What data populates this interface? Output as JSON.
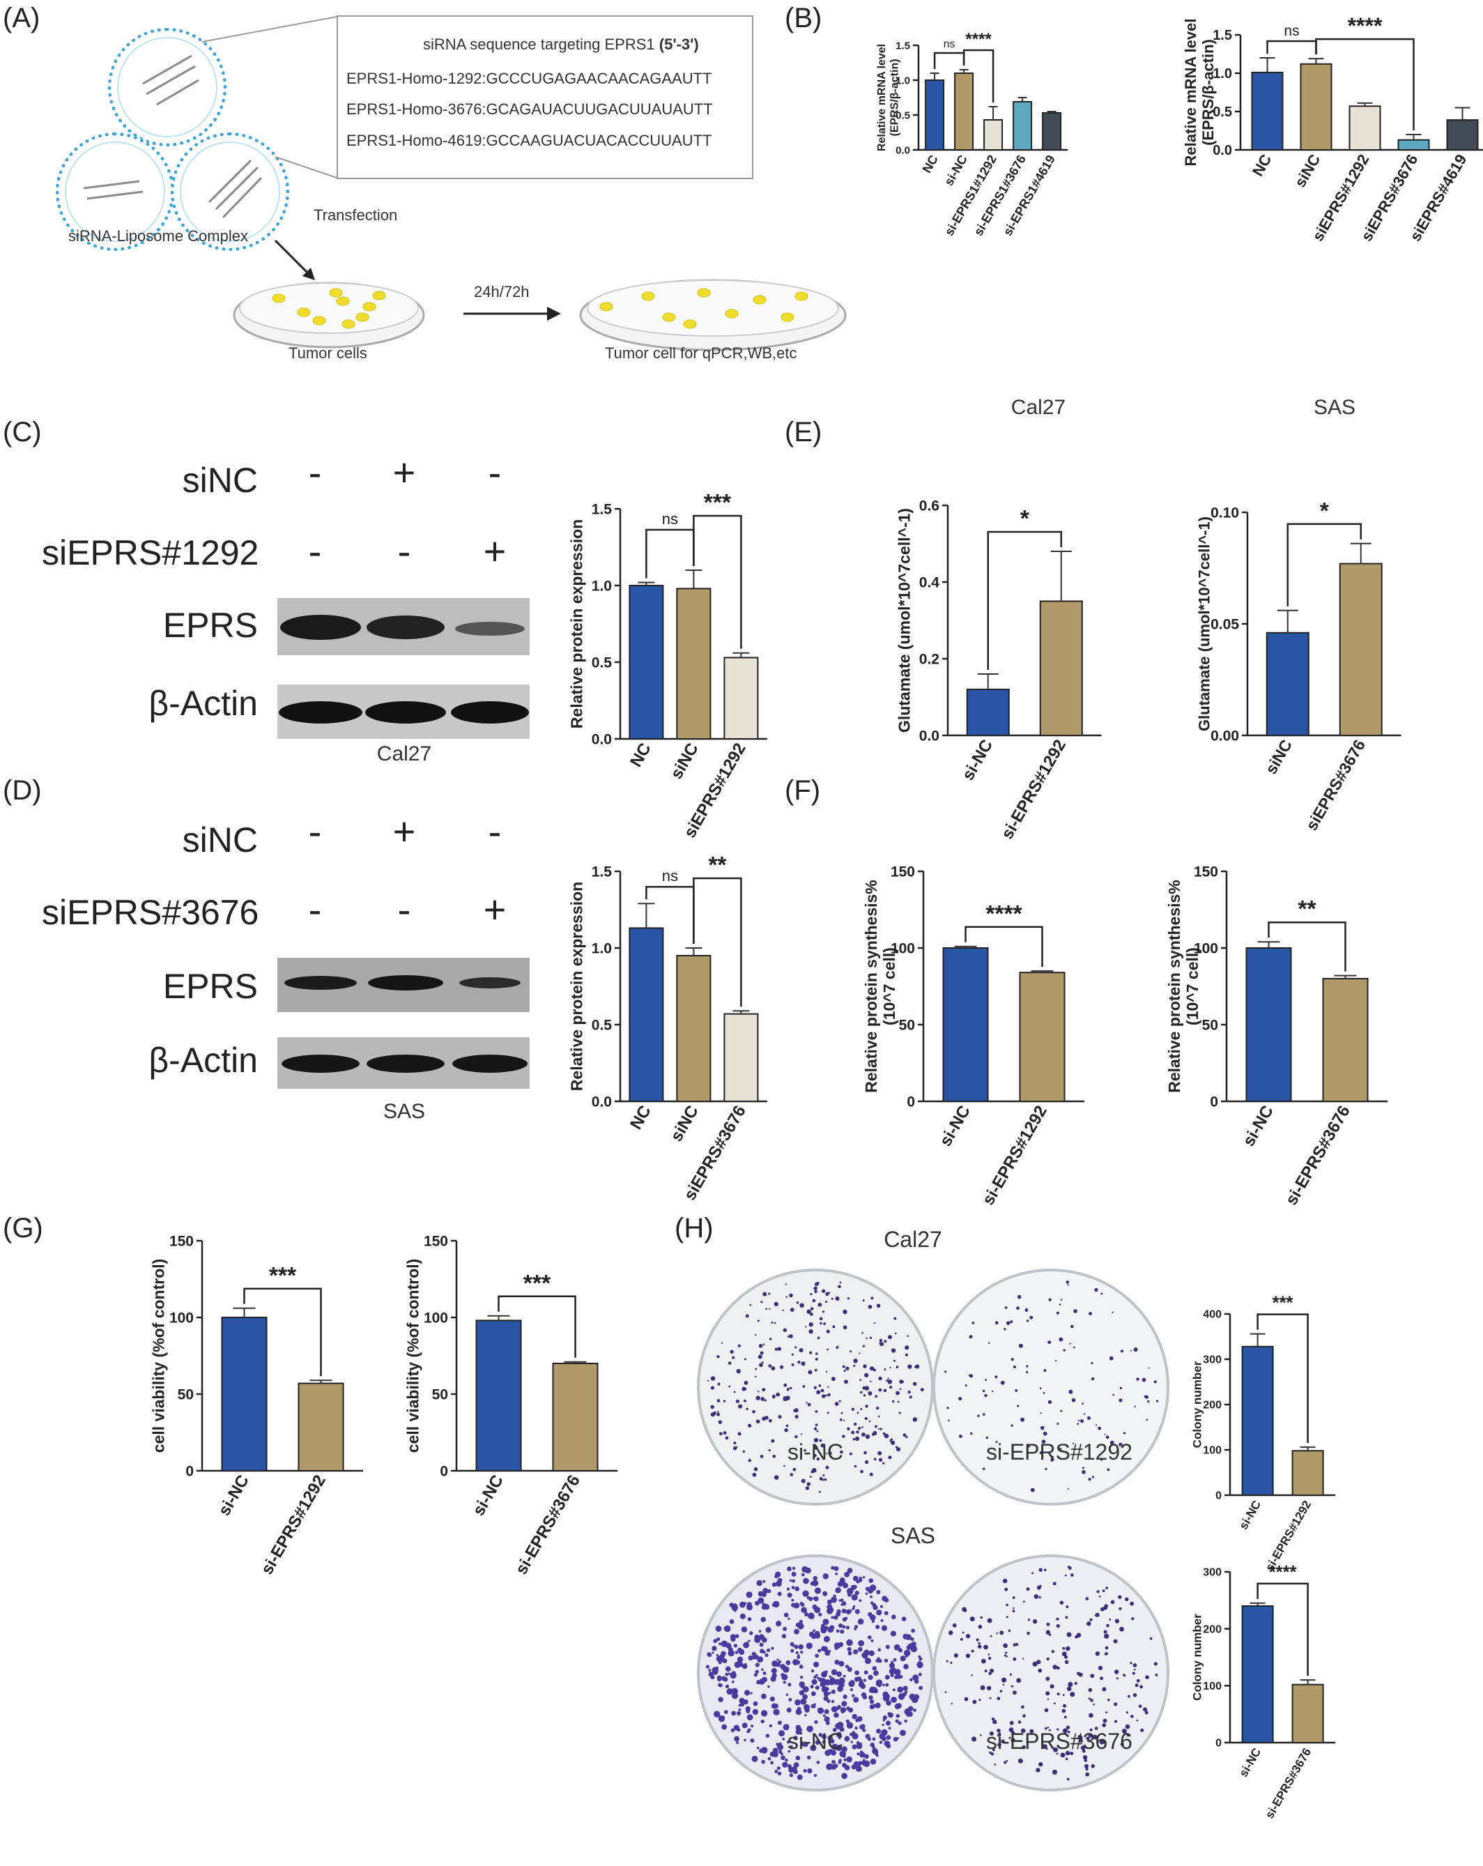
{
  "panel_labels": {
    "A": "(A)",
    "B": "(B)",
    "C": "(C)",
    "D": "(D)",
    "E": "(E)",
    "F": "(F)",
    "G": "(G)",
    "H": "(H)"
  },
  "colors": {
    "blue": "#2a55a5",
    "tan": "#b19a6a",
    "beige": "#e5e2d6",
    "teal": "#5fa8c2",
    "dark": "#424a55",
    "errbar": "#333333"
  },
  "panelA": {
    "seq_title": "siRNA sequence targeting EPRS1",
    "seq_title_bold": "(5'-3')",
    "sequences": [
      "EPRS1-Homo-1292:GCCCUGAGAACAACAGAAUTT",
      "EPRS1-Homo-3676:GCAGAUACUUGACUUAUAUTT",
      "EPRS1-Homo-4619:GCCAAGUACUACACCUUAUTT"
    ],
    "transfection": "Transfection",
    "complex": "siRNA-Liposome Complex",
    "time": "24h/72h",
    "tumor_cells": "Tumor cells",
    "tumor_cells_for": "Tumor cell for qPCR,WB,etc"
  },
  "captions": {
    "b_left": "Cal27",
    "b_right": "SAS",
    "c_wb": "Cal27",
    "d_wb": "SAS"
  },
  "westerns": {
    "C": {
      "rows": [
        "siNC",
        "siEPRS#1292"
      ],
      "signs": [
        [
          "-",
          "+",
          "-"
        ],
        [
          "-",
          "-",
          "+"
        ]
      ],
      "bands": [
        "EPRS",
        "β-Actin"
      ]
    },
    "D": {
      "rows": [
        "siNC",
        "siEPRS#3676"
      ],
      "signs": [
        [
          "-",
          "+",
          "-"
        ],
        [
          "-",
          "-",
          "+"
        ]
      ],
      "bands": [
        "EPRS",
        "β-Actin"
      ]
    }
  },
  "plates": {
    "cal27_title": "Cal27",
    "sas_title": "SAS",
    "cal27_labels": [
      "si-NC",
      "si-EPRS#1292"
    ],
    "sas_labels": [
      "si-NC",
      "si-EPRS#3676"
    ]
  },
  "chart_data": [
    {
      "id": "B1",
      "type": "bar",
      "ylabel": "Relative mRNA level\n(EPRS/β-actin)",
      "categories": [
        "NC",
        "si-NC",
        "si-EPRS1#1292",
        "si-EPRS1#3676",
        "si-EPRS1#4619"
      ],
      "values": [
        1.0,
        1.1,
        0.43,
        0.69,
        0.53
      ],
      "errors": [
        0.1,
        0.05,
        0.19,
        0.06,
        0.02
      ],
      "colors": [
        "blue",
        "tan",
        "beige",
        "teal",
        "dark"
      ],
      "ylim": [
        0,
        1.5
      ],
      "ticks": [
        0.0,
        0.5,
        1.0,
        1.5
      ],
      "sig": [
        {
          "a": 0,
          "b": 1,
          "text": "ns"
        },
        {
          "a": 1,
          "b": 2,
          "text": "****"
        }
      ]
    },
    {
      "id": "B2",
      "type": "bar",
      "ylabel": "Relative mRNA level\n(EPRS/β-actin)",
      "categories": [
        "NC",
        "siNC",
        "siEPRS#1292",
        "siEPRS#3676",
        "siEPRS#4619"
      ],
      "values": [
        1.01,
        1.12,
        0.57,
        0.13,
        0.39
      ],
      "errors": [
        0.19,
        0.07,
        0.04,
        0.07,
        0.16
      ],
      "colors": [
        "blue",
        "tan",
        "beige",
        "teal",
        "dark"
      ],
      "ylim": [
        0,
        1.5
      ],
      "ticks": [
        0.0,
        0.5,
        1.0,
        1.5
      ],
      "sig": [
        {
          "a": 0,
          "b": 1,
          "text": "ns"
        },
        {
          "a": 1,
          "b": 3,
          "text": "****"
        }
      ]
    },
    {
      "id": "C",
      "type": "bar",
      "ylabel": "Relative protein expression",
      "categories": [
        "NC",
        "siNC",
        "siEPRS#1292"
      ],
      "values": [
        1.0,
        0.98,
        0.53
      ],
      "errors": [
        0.02,
        0.12,
        0.03
      ],
      "colors": [
        "blue",
        "tan",
        "beige"
      ],
      "ylim": [
        0,
        1.5
      ],
      "ticks": [
        0.0,
        0.5,
        1.0,
        1.5
      ],
      "sig": [
        {
          "a": 0,
          "b": 1,
          "text": "ns"
        },
        {
          "a": 1,
          "b": 2,
          "text": "***"
        }
      ]
    },
    {
      "id": "D",
      "type": "bar",
      "ylabel": "Relative protein expression",
      "categories": [
        "NC",
        "siNC",
        "siEPRS#3676"
      ],
      "values": [
        1.13,
        0.95,
        0.57
      ],
      "errors": [
        0.16,
        0.05,
        0.02
      ],
      "colors": [
        "blue",
        "tan",
        "beige"
      ],
      "ylim": [
        0,
        1.5
      ],
      "ticks": [
        0.0,
        0.5,
        1.0,
        1.5
      ],
      "sig": [
        {
          "a": 0,
          "b": 1,
          "text": "ns"
        },
        {
          "a": 1,
          "b": 2,
          "text": "**"
        }
      ]
    },
    {
      "id": "E1",
      "type": "bar",
      "ylabel": "Glutamate (umol*10^7cell^-1)",
      "categories": [
        "si-NC",
        "si-EPRS#1292"
      ],
      "values": [
        0.12,
        0.35
      ],
      "errors": [
        0.04,
        0.13
      ],
      "colors": [
        "blue",
        "tan"
      ],
      "ylim": [
        0,
        0.6
      ],
      "ticks": [
        0.0,
        0.2,
        0.4,
        0.6
      ],
      "sig": [
        {
          "a": 0,
          "b": 1,
          "text": "*"
        }
      ]
    },
    {
      "id": "E2",
      "type": "bar",
      "ylabel": "Glutamate (umol*10^7cell^-1)",
      "categories": [
        "siNC",
        "siEPRS#3676"
      ],
      "values": [
        0.046,
        0.077
      ],
      "errors": [
        0.01,
        0.009
      ],
      "colors": [
        "blue",
        "tan"
      ],
      "ylim": [
        0,
        0.1
      ],
      "ticks": [
        0.0,
        0.05,
        0.1
      ],
      "sig": [
        {
          "a": 0,
          "b": 1,
          "text": "*"
        }
      ]
    },
    {
      "id": "F1",
      "type": "bar",
      "ylabel": "Relative protein synthesis%\n(10^7 cell)",
      "categories": [
        "si-NC",
        "si-EPRS#1292"
      ],
      "values": [
        100,
        84
      ],
      "errors": [
        1,
        1
      ],
      "colors": [
        "blue",
        "tan"
      ],
      "ylim": [
        0,
        150
      ],
      "ticks": [
        0,
        50,
        100,
        150
      ],
      "sig": [
        {
          "a": 0,
          "b": 1,
          "text": "****"
        }
      ]
    },
    {
      "id": "F2",
      "type": "bar",
      "ylabel": "Relative protein synthesis%\n(10^7 cell)",
      "categories": [
        "si-NC",
        "si-EPRS#3676"
      ],
      "values": [
        100,
        80
      ],
      "errors": [
        4,
        2
      ],
      "colors": [
        "blue",
        "tan"
      ],
      "ylim": [
        0,
        150
      ],
      "ticks": [
        0,
        50,
        100,
        150
      ],
      "sig": [
        {
          "a": 0,
          "b": 1,
          "text": "**"
        }
      ]
    },
    {
      "id": "G1",
      "type": "bar",
      "ylabel": "cell viability (%of control)",
      "categories": [
        "si-NC",
        "si-EPRS#1292"
      ],
      "values": [
        100,
        57
      ],
      "errors": [
        6,
        2
      ],
      "colors": [
        "blue",
        "tan"
      ],
      "ylim": [
        0,
        150
      ],
      "ticks": [
        0,
        50,
        100,
        150
      ],
      "sig": [
        {
          "a": 0,
          "b": 1,
          "text": "***"
        }
      ]
    },
    {
      "id": "G2",
      "type": "bar",
      "ylabel": "cell viability (%of control)",
      "categories": [
        "si-NC",
        "si-EPRS#3676"
      ],
      "values": [
        98,
        70
      ],
      "errors": [
        3,
        1
      ],
      "colors": [
        "blue",
        "tan"
      ],
      "ylim": [
        0,
        150
      ],
      "ticks": [
        0,
        50,
        100,
        150
      ],
      "sig": [
        {
          "a": 0,
          "b": 1,
          "text": "***"
        }
      ]
    },
    {
      "id": "H1",
      "type": "bar",
      "ylabel": "Colony number",
      "categories": [
        "si-NC",
        "si-EPRS#1292"
      ],
      "values": [
        328,
        98
      ],
      "errors": [
        28,
        8
      ],
      "colors": [
        "blue",
        "tan"
      ],
      "ylim": [
        0,
        400
      ],
      "ticks": [
        0,
        100,
        200,
        300,
        400
      ],
      "sig": [
        {
          "a": 0,
          "b": 1,
          "text": "***"
        }
      ]
    },
    {
      "id": "H2",
      "type": "bar",
      "ylabel": "Colony number",
      "categories": [
        "si-NC",
        "si-EPRS#3676"
      ],
      "values": [
        240,
        102
      ],
      "errors": [
        5,
        8
      ],
      "colors": [
        "blue",
        "tan"
      ],
      "ylim": [
        0,
        300
      ],
      "ticks": [
        0,
        100,
        200,
        300
      ],
      "sig": [
        {
          "a": 0,
          "b": 1,
          "text": "****"
        }
      ]
    }
  ]
}
